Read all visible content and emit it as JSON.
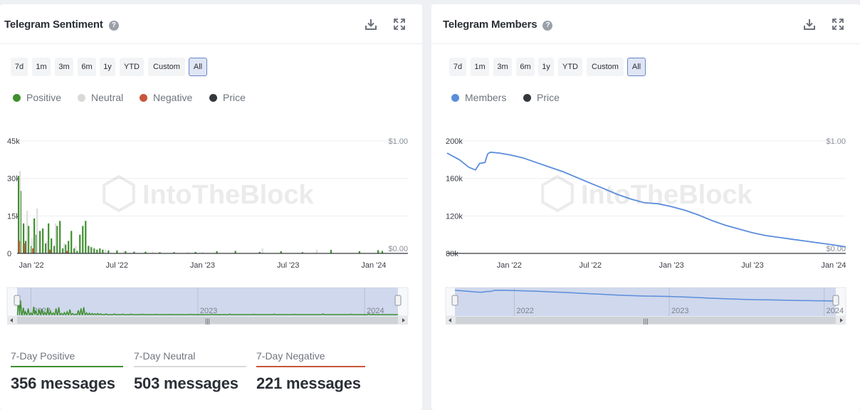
{
  "colors": {
    "positive": "#3f8f2f",
    "neutral": "#d9d9d9",
    "negative": "#c9553a",
    "price": "#34373c",
    "members": "#5b8ddb",
    "active_btn_border": "#6a85c9"
  },
  "range_buttons": [
    "7d",
    "1m",
    "3m",
    "6m",
    "1y",
    "YTD",
    "Custom",
    "All"
  ],
  "active_range": "All",
  "watermark": "IntoTheBlock",
  "icons": {
    "help": "help-icon",
    "download": "download-icon",
    "fullscreen": "fullscreen-icon"
  },
  "sentiment": {
    "title": "Telegram Sentiment",
    "help_glyph": "?",
    "legend": [
      "Positive",
      "Neutral",
      "Negative",
      "Price"
    ],
    "stats": [
      {
        "label": "7-Day Positive",
        "value": "356 messages"
      },
      {
        "label": "7-Day Neutral",
        "value": "503 messages"
      },
      {
        "label": "7-Day Negative",
        "value": "221 messages"
      }
    ]
  },
  "members": {
    "title": "Telegram Members",
    "help_glyph": "?",
    "legend": [
      "Members",
      "Price"
    ]
  },
  "chart_data": [
    {
      "type": "bar",
      "title": "Telegram Sentiment",
      "xlabel": "",
      "ylabel": "",
      "y_ticks": [
        "0",
        "15k",
        "30k",
        "45k"
      ],
      "ylim": [
        0,
        45000
      ],
      "y2_ticks": [
        "$0.00",
        "$1.00"
      ],
      "y2lim": [
        0,
        1
      ],
      "x_ticks": [
        "Jan '22",
        "Jul '22",
        "Jan '23",
        "Jul '23",
        "Jan '24"
      ],
      "x_tick_months": [
        1,
        7,
        13,
        19,
        25
      ],
      "x_range_months": [
        0,
        27.4
      ],
      "navigator_labels": [
        "2022",
        "2023",
        "2024"
      ],
      "navigator_label_months": [
        1,
        13,
        25
      ],
      "series": [
        {
          "name": "Positive",
          "months": [
            0.1,
            0.25,
            0.45,
            0.6,
            0.8,
            1.0,
            1.2,
            1.35,
            1.6,
            1.8,
            2.0,
            2.2,
            2.4,
            2.6,
            2.8,
            3.0,
            3.2,
            3.4,
            3.6,
            3.8,
            4.0,
            4.2,
            4.4,
            4.6,
            4.8,
            5.0,
            5.2,
            5.4,
            5.6,
            5.8,
            6.0,
            6.4,
            7.0,
            7.6,
            8.2,
            9.0,
            10.0,
            11.0,
            12.5,
            14.0,
            15.3,
            17.0,
            18.5,
            20.0,
            22.0,
            24.0,
            25.3,
            25.6
          ],
          "values": [
            31000,
            25000,
            12000,
            5000,
            11000,
            3000,
            14000,
            7500,
            9000,
            10000,
            4000,
            12000,
            6000,
            3000,
            11000,
            13000,
            2000,
            3500,
            5000,
            9000,
            2000,
            1000,
            7500,
            11000,
            13000,
            3000,
            2500,
            2000,
            1500,
            2000,
            1500,
            1200,
            1200,
            900,
            700,
            700,
            500,
            500,
            600,
            900,
            1000,
            600,
            900,
            500,
            1400,
            900,
            1300,
            1000
          ]
        },
        {
          "name": "Neutral",
          "months": [
            0.2,
            0.7,
            1.05,
            1.4,
            2.1,
            2.7,
            3.3,
            4.1,
            5.1,
            6.2,
            7.5,
            9.5,
            12.0,
            13.0,
            17.2,
            21.0,
            25.4
          ],
          "values": [
            33000,
            17000,
            6000,
            18000,
            5000,
            12000,
            4000,
            3000,
            3000,
            1500,
            1000,
            800,
            600,
            700,
            2000,
            1500,
            900
          ]
        },
        {
          "name": "Negative",
          "months": [
            0.15,
            0.5,
            1.1,
            2.3,
            3.5
          ],
          "values": [
            5000,
            4000,
            2000,
            1500,
            1000
          ]
        },
        {
          "name": "Price",
          "months": [
            0,
            27.4
          ],
          "values": [
            0.0,
            0.0
          ]
        }
      ]
    },
    {
      "type": "line",
      "title": "Telegram Members",
      "xlabel": "",
      "ylabel": "",
      "y_ticks": [
        "80k",
        "120k",
        "160k",
        "200k"
      ],
      "ylim": [
        80000,
        200000
      ],
      "y2_ticks": [
        "$0.00",
        "$1.00"
      ],
      "y2lim": [
        0,
        1
      ],
      "x_ticks": [
        "Jan '22",
        "Jul '22",
        "Jan '23",
        "Jul '23",
        "Jan '24"
      ],
      "x_tick_months": [
        1,
        7,
        13,
        19,
        25
      ],
      "x_range_months": [
        -3.6,
        25.9
      ],
      "navigator_labels": [
        "2022",
        "2023",
        "2024"
      ],
      "navigator_label_months": [
        1,
        13,
        25
      ],
      "series": [
        {
          "name": "Members",
          "months": [
            -3.6,
            -2.7,
            -2.0,
            -1.5,
            -1.2,
            -0.8,
            -0.6,
            -0.4,
            0.3,
            1.1,
            2.0,
            3.0,
            4.0,
            5.0,
            6.0,
            7.0,
            8.0,
            9.0,
            10.0,
            11.0,
            12.0,
            13.0,
            14.0,
            15.0,
            16.0,
            17.0,
            18.0,
            19.0,
            20.0,
            21.0,
            22.0,
            23.0,
            24.0,
            25.0,
            25.9
          ],
          "values": [
            187000,
            180000,
            172000,
            169000,
            176000,
            177000,
            186000,
            188000,
            187000,
            185000,
            182000,
            177000,
            172000,
            167000,
            161000,
            155000,
            149000,
            143000,
            138000,
            134000,
            133000,
            130000,
            126000,
            121000,
            115000,
            110000,
            106000,
            102000,
            99000,
            97000,
            95000,
            93000,
            91000,
            89000,
            87000
          ]
        },
        {
          "name": "Price",
          "months": [
            -3.6,
            25.9
          ],
          "values": [
            0.0,
            0.0
          ]
        }
      ]
    }
  ]
}
